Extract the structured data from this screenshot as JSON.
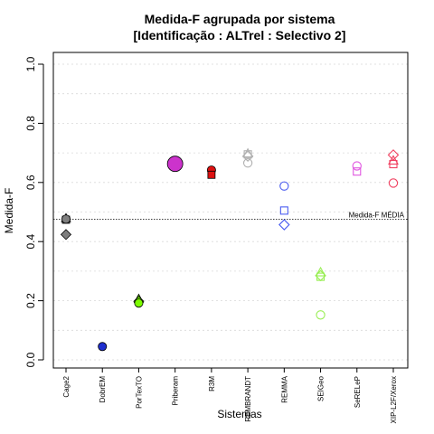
{
  "chart_data": {
    "type": "scatter",
    "title": "Medida-F agrupada por sistema",
    "subtitle": "[Identificação : ALTrel : Selectivo 2]",
    "xlabel": "Sistemas",
    "ylabel": "Medida-F",
    "ylim": [
      0,
      1
    ],
    "yticks": [
      0.0,
      0.2,
      0.4,
      0.6,
      0.8,
      1.0
    ],
    "ytick_labels": [
      "0.0",
      "0.2",
      "0.4",
      "0.6",
      "0.8",
      "1.0"
    ],
    "grid": true,
    "categories": [
      "Cage2",
      "DobrEM",
      "PorTexTO",
      "Priberam",
      "R3M",
      "REMBRANDT",
      "REMMA",
      "SEIGeo",
      "SeRELeP",
      "XIP-L2F/Xerox"
    ],
    "reference_line": {
      "value": 0.476,
      "label": "Medida-F MÉDIA"
    },
    "series": [
      {
        "category": "Cage2",
        "color": "#7f7f7f",
        "points": [
          {
            "value": 0.478,
            "marker": "triangle",
            "filled": true
          },
          {
            "value": 0.474,
            "marker": "square",
            "filled": true
          },
          {
            "value": 0.476,
            "marker": "circle",
            "filled": true
          },
          {
            "value": 0.424,
            "marker": "diamond",
            "filled": true
          }
        ]
      },
      {
        "category": "DobrEM",
        "color": "#1f2fcf",
        "points": [
          {
            "value": 0.045,
            "marker": "circle",
            "filled": true
          }
        ]
      },
      {
        "category": "PorTexTO",
        "color": "#7cfc00",
        "points": [
          {
            "value": 0.205,
            "marker": "triangle",
            "filled": true
          },
          {
            "value": 0.198,
            "marker": "diamond",
            "filled": true
          },
          {
            "value": 0.192,
            "marker": "circle",
            "filled": true
          }
        ]
      },
      {
        "category": "Priberam",
        "color": "#cc33cc",
        "points": [
          {
            "value": 0.663,
            "marker": "circle-large",
            "filled": true
          }
        ]
      },
      {
        "category": "R3M",
        "color": "#dd1111",
        "points": [
          {
            "value": 0.642,
            "marker": "circle",
            "filled": true
          },
          {
            "value": 0.626,
            "marker": "square",
            "filled": true
          }
        ]
      },
      {
        "category": "REMBRANDT",
        "color": "#b0b0b0",
        "points": [
          {
            "value": 0.697,
            "marker": "triangle",
            "filled": false
          },
          {
            "value": 0.689,
            "marker": "diamond",
            "filled": false
          },
          {
            "value": 0.695,
            "marker": "square",
            "filled": false
          },
          {
            "value": 0.666,
            "marker": "circle",
            "filled": false
          }
        ]
      },
      {
        "category": "REMMA",
        "color": "#4a5cf0",
        "points": [
          {
            "value": 0.588,
            "marker": "circle",
            "filled": false
          },
          {
            "value": 0.505,
            "marker": "square",
            "filled": false
          },
          {
            "value": 0.457,
            "marker": "diamond",
            "filled": false
          }
        ]
      },
      {
        "category": "SEIGeo",
        "color": "#99ee55",
        "points": [
          {
            "value": 0.295,
            "marker": "triangle",
            "filled": false
          },
          {
            "value": 0.285,
            "marker": "diamond",
            "filled": false
          },
          {
            "value": 0.281,
            "marker": "square",
            "filled": false
          },
          {
            "value": 0.152,
            "marker": "circle",
            "filled": false
          }
        ]
      },
      {
        "category": "SeRELeP",
        "color": "#e055e0",
        "points": [
          {
            "value": 0.656,
            "marker": "circle",
            "filled": false
          },
          {
            "value": 0.637,
            "marker": "square",
            "filled": false
          }
        ]
      },
      {
        "category": "XIP-L2F/Xerox",
        "color": "#f04060",
        "points": [
          {
            "value": 0.693,
            "marker": "diamond",
            "filled": false
          },
          {
            "value": 0.673,
            "marker": "triangle",
            "filled": false
          },
          {
            "value": 0.662,
            "marker": "square",
            "filled": false
          },
          {
            "value": 0.598,
            "marker": "circle",
            "filled": false
          }
        ]
      }
    ]
  }
}
